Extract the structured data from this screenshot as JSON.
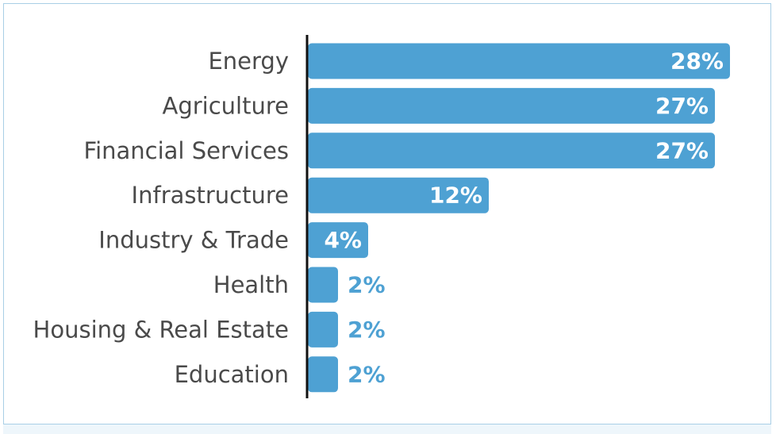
{
  "chart_data": {
    "type": "bar",
    "orientation": "horizontal",
    "categories": [
      "Energy",
      "Agriculture",
      "Financial Services",
      "Infrastructure",
      "Industry & Trade",
      "Health",
      "Housing & Real Estate",
      "Education"
    ],
    "values": [
      28,
      27,
      27,
      12,
      4,
      2,
      2,
      2
    ],
    "value_labels": [
      "28%",
      "27%",
      "27%",
      "12%",
      "4%",
      "2%",
      "2%",
      "2%"
    ],
    "unit": "%",
    "title": "",
    "xlabel": "",
    "ylabel": "",
    "xlim": [
      0,
      28
    ],
    "grid": false,
    "bar_color": "#4ea1d3",
    "label_inside_color": "#ffffff",
    "label_outside_color": "#4ea1d3"
  }
}
